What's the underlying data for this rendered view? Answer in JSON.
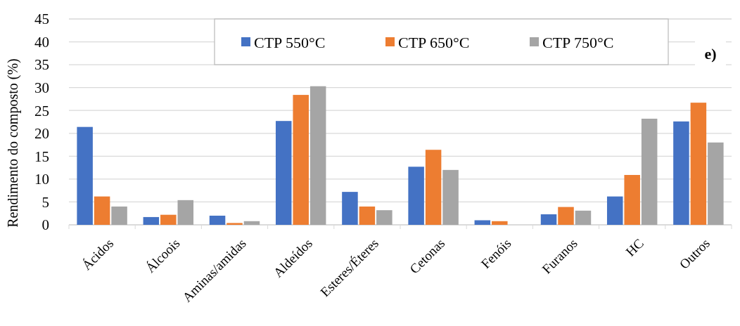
{
  "chart_data": {
    "type": "bar",
    "ylabel": "Rendimento do composto (%)",
    "categories": [
      "Ácidos",
      "Álcoois",
      "Aminas/amidas",
      "Aldeídos",
      "Esteres/Éteres",
      "Cetonas",
      "Fenóis",
      "Furanos",
      "HC",
      "Outros"
    ],
    "series": [
      {
        "name": "CTP 550°C",
        "color": "#4472c4",
        "values": [
          21.4,
          1.7,
          2.0,
          22.7,
          7.2,
          12.7,
          1.0,
          2.3,
          6.2,
          22.6
        ]
      },
      {
        "name": "CTP 650°C",
        "color": "#ed7d31",
        "values": [
          6.2,
          2.2,
          0.4,
          28.4,
          4.0,
          16.4,
          0.8,
          3.9,
          10.9,
          26.7
        ]
      },
      {
        "name": "CTP 750°C",
        "color": "#a5a5a5",
        "values": [
          4.0,
          5.4,
          0.8,
          30.3,
          3.2,
          12.0,
          0,
          3.1,
          23.2,
          18.0
        ]
      }
    ],
    "ylim": [
      0,
      45
    ],
    "yticks": [
      0,
      5,
      10,
      15,
      20,
      25,
      30,
      35,
      40,
      45
    ],
    "grid": "y",
    "legend": "top",
    "annotations": [
      "e)"
    ]
  }
}
